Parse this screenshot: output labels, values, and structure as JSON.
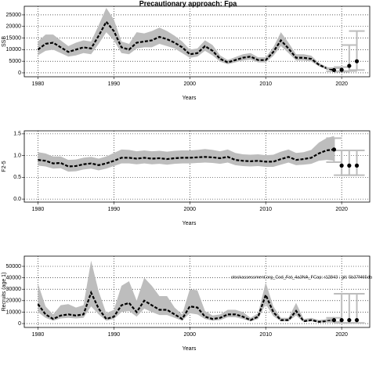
{
  "chart_data": [
    {
      "type": "line",
      "title": "Precautionary approach: Fpa",
      "ylabel": "SSB",
      "xlabel": "Years",
      "x": [
        1980,
        1981,
        1982,
        1983,
        1984,
        1985,
        1986,
        1987,
        1988,
        1989,
        1990,
        1991,
        1992,
        1993,
        1994,
        1995,
        1996,
        1997,
        1998,
        1999,
        2000,
        2001,
        2002,
        2003,
        2004,
        2005,
        2006,
        2007,
        2008,
        2009,
        2010,
        2011,
        2012,
        2013,
        2014,
        2015,
        2016,
        2017,
        2018,
        2019
      ],
      "series": [
        {
          "color": "#000000",
          "band_color": "#bdbdbd",
          "values": [
            10000,
            12500,
            13000,
            11000,
            9000,
            10000,
            11000,
            10500,
            16000,
            22000,
            18000,
            11000,
            10000,
            13000,
            13500,
            14000,
            15500,
            14500,
            13000,
            11000,
            8000,
            8500,
            11500,
            9500,
            6000,
            4500,
            5500,
            6500,
            7000,
            5500,
            5500,
            9000,
            14000,
            10500,
            6500,
            6500,
            6000,
            3500,
            2000,
            1200
          ],
          "lower": [
            7500,
            9500,
            10000,
            8500,
            7000,
            7500,
            8500,
            8000,
            12500,
            17500,
            14000,
            8500,
            8000,
            10500,
            11000,
            11000,
            12500,
            11500,
            10500,
            8500,
            6500,
            7000,
            9500,
            7500,
            4800,
            3700,
            4500,
            5300,
            5700,
            4500,
            4500,
            7300,
            11500,
            8500,
            5300,
            5300,
            4900,
            2800,
            1500,
            800
          ],
          "upper": [
            13500,
            16500,
            16500,
            14000,
            11500,
            13000,
            14000,
            13500,
            20500,
            28000,
            23000,
            13500,
            12500,
            17500,
            17000,
            18000,
            19500,
            18000,
            16000,
            13500,
            10000,
            10500,
            14000,
            12000,
            7500,
            5500,
            6800,
            8000,
            8500,
            6700,
            6700,
            11000,
            17500,
            13000,
            8000,
            8000,
            7400,
            4300,
            2600,
            1700
          ]
        }
      ],
      "forecast": {
        "color": "#000000",
        "bar_color": "#bdbdbd",
        "x": [
          2019,
          2020,
          2021,
          2022
        ],
        "values": [
          1200,
          1300,
          3000,
          5000
        ],
        "lower": [
          700,
          500,
          800,
          1200
        ],
        "upper": [
          2000,
          2500,
          12000,
          18000
        ]
      },
      "xlim": [
        1978.2,
        2023.7
      ],
      "xticks": [
        1980,
        1990,
        2000,
        2010,
        2020
      ],
      "ylim": [
        -1700,
        28700
      ],
      "yticks": [
        0,
        5000,
        10000,
        15000,
        20000,
        25000
      ],
      "grid": true
    },
    {
      "type": "line",
      "ylabel": "F2-5",
      "xlabel": "Years",
      "x": [
        1980,
        1981,
        1982,
        1983,
        1984,
        1985,
        1986,
        1987,
        1988,
        1989,
        1990,
        1991,
        1992,
        1993,
        1994,
        1995,
        1996,
        1997,
        1998,
        1999,
        2000,
        2001,
        2002,
        2003,
        2004,
        2005,
        2006,
        2007,
        2008,
        2009,
        2010,
        2011,
        2012,
        2013,
        2014,
        2015,
        2016,
        2017,
        2018,
        2019
      ],
      "series": [
        {
          "color": "#000000",
          "band_color": "#bdbdbd",
          "values": [
            0.9,
            0.88,
            0.82,
            0.83,
            0.75,
            0.76,
            0.8,
            0.82,
            0.78,
            0.82,
            0.88,
            0.95,
            0.95,
            0.93,
            0.95,
            0.93,
            0.94,
            0.92,
            0.94,
            0.95,
            0.95,
            0.96,
            0.97,
            0.96,
            0.94,
            0.97,
            0.9,
            0.88,
            0.87,
            0.88,
            0.86,
            0.86,
            0.92,
            0.97,
            0.9,
            0.92,
            0.95,
            1.05,
            1.12,
            1.14
          ],
          "lower": [
            0.77,
            0.75,
            0.7,
            0.71,
            0.63,
            0.64,
            0.68,
            0.7,
            0.66,
            0.7,
            0.76,
            0.82,
            0.82,
            0.8,
            0.82,
            0.8,
            0.81,
            0.79,
            0.81,
            0.82,
            0.82,
            0.83,
            0.84,
            0.83,
            0.81,
            0.84,
            0.78,
            0.76,
            0.75,
            0.76,
            0.74,
            0.74,
            0.79,
            0.84,
            0.78,
            0.79,
            0.81,
            0.88,
            0.9,
            0.88
          ],
          "upper": [
            1.08,
            1.05,
            0.98,
            0.98,
            0.9,
            0.91,
            0.95,
            0.97,
            0.93,
            0.98,
            1.06,
            1.14,
            1.13,
            1.1,
            1.12,
            1.1,
            1.11,
            1.09,
            1.11,
            1.12,
            1.12,
            1.13,
            1.15,
            1.13,
            1.1,
            1.14,
            1.06,
            1.03,
            1.02,
            1.03,
            1.01,
            1.02,
            1.09,
            1.14,
            1.06,
            1.08,
            1.13,
            1.3,
            1.4,
            1.45
          ]
        }
      ],
      "forecast": {
        "color": "#000000",
        "bar_color": "#bdbdbd",
        "x": [
          2019,
          2020,
          2021,
          2022
        ],
        "values": [
          1.14,
          0.77,
          0.77,
          0.77
        ],
        "lower": [
          0.85,
          0.55,
          0.55,
          0.55
        ],
        "upper": [
          1.4,
          1.12,
          1.12,
          1.12
        ]
      },
      "xlim": [
        1978.2,
        2023.7
      ],
      "xticks": [
        1980,
        1990,
        2000,
        2010,
        2020
      ],
      "ylim": [
        -0.07,
        1.57
      ],
      "yticks": [
        {
          "value": 0,
          "label": "0.0"
        },
        {
          "value": 0.5,
          "label": "0.5"
        },
        {
          "value": 1,
          "label": "1.0"
        },
        {
          "value": 1.5,
          "label": "1.5"
        }
      ],
      "grid": true
    },
    {
      "type": "line",
      "ylabel": "Recruits (age 1)",
      "xlabel": "Years",
      "annotation": "stockassessment.org_Cod_Fat_4a3NA_FCap: r12843 : git: 5b37f465da",
      "x": [
        1980,
        1981,
        1982,
        1983,
        1984,
        1985,
        1986,
        1987,
        1988,
        1989,
        1990,
        1991,
        1992,
        1993,
        1994,
        1995,
        1996,
        1997,
        1998,
        1999,
        2000,
        2001,
        2002,
        2003,
        2004,
        2005,
        2006,
        2007,
        2008,
        2009,
        2010,
        2011,
        2012,
        2013,
        2014,
        2015,
        2016,
        2017,
        2018,
        2019
      ],
      "series": [
        {
          "color": "#000000",
          "band_color": "#bdbdbd",
          "values": [
            17000,
            8000,
            4000,
            7000,
            8000,
            7000,
            8000,
            27000,
            13000,
            4000,
            6000,
            16000,
            18000,
            10000,
            20000,
            16000,
            12000,
            12000,
            8000,
            4000,
            15000,
            14000,
            6000,
            4000,
            5000,
            8000,
            8000,
            6000,
            3000,
            6000,
            25000,
            10000,
            3000,
            3000,
            11000,
            2000,
            3000,
            1500,
            2000,
            3000
          ],
          "lower": [
            10000,
            5000,
            2500,
            4500,
            5000,
            4500,
            5000,
            15000,
            8000,
            2500,
            4000,
            10000,
            11000,
            6000,
            13000,
            10000,
            7500,
            7500,
            5000,
            2500,
            9000,
            8000,
            4000,
            2500,
            3000,
            5500,
            5500,
            4000,
            2000,
            4000,
            17000,
            6500,
            2000,
            2000,
            7000,
            1200,
            2000,
            900,
            1200,
            1500
          ],
          "upper": [
            35000,
            15000,
            8000,
            16000,
            17000,
            14000,
            16000,
            55000,
            28000,
            9000,
            12000,
            33000,
            37000,
            20000,
            40000,
            33000,
            24000,
            24000,
            14000,
            8000,
            30000,
            29000,
            11000,
            7000,
            8000,
            12000,
            12000,
            10000,
            5000,
            9000,
            36000,
            15000,
            5000,
            5000,
            18000,
            4000,
            5000,
            3000,
            4000,
            6000
          ]
        }
      ],
      "forecast": {
        "color": "#000000",
        "bar_color": "#bdbdbd",
        "x": [
          2019,
          2020,
          2021,
          2022
        ],
        "values": [
          3000,
          3000,
          3000,
          3000
        ],
        "lower": [
          1500,
          500,
          500,
          500
        ],
        "upper": [
          5000,
          26000,
          26000,
          26000
        ]
      },
      "xlim": [
        1978.2,
        2023.7
      ],
      "xticks": [
        1980,
        1990,
        2000,
        2010,
        2020
      ],
      "ylim": [
        -3400,
        58900
      ],
      "yticks": [
        0,
        10000,
        20000,
        30000,
        40000,
        50000
      ],
      "grid": true
    }
  ]
}
